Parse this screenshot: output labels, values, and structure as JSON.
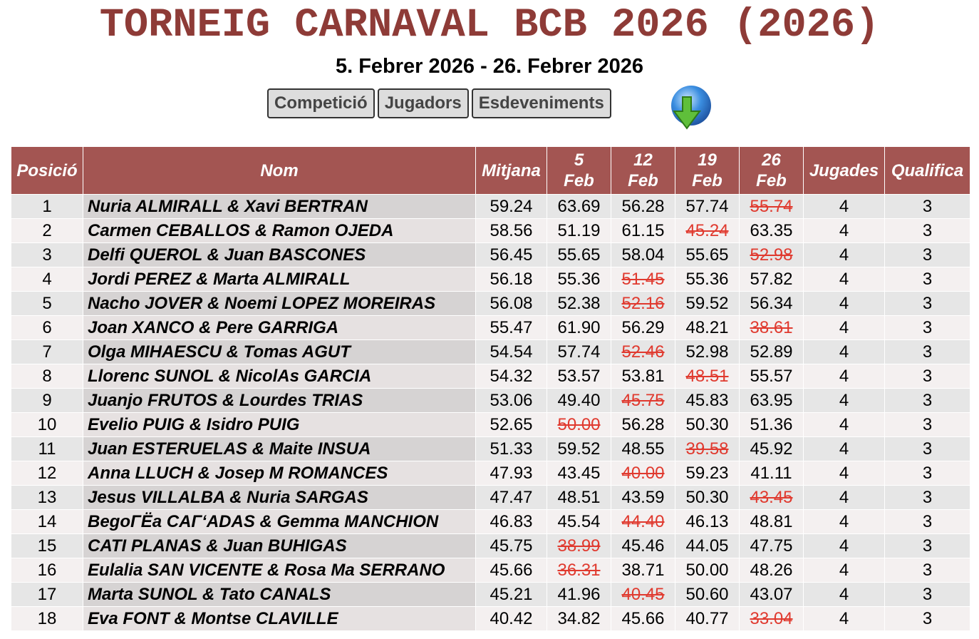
{
  "header": {
    "title": "TORNEIG CARNAVAL BCB 2026 (2026)",
    "dates": "5. Febrer 2026 - 26. Febrer 2026",
    "tabs": [
      "Competició",
      "Jugadors",
      "Esdeveniments"
    ]
  },
  "table": {
    "columns": [
      "Posició",
      "Nom",
      "Mitjana",
      "5 Feb",
      "12 Feb",
      "19 Feb",
      "26 Feb",
      "Jugades",
      "Qualifica"
    ],
    "rows": [
      {
        "pos": "1",
        "name": "Nuria ALMIRALL & Xavi BERTRAN",
        "avg": "59.24",
        "scores": [
          "63.69",
          "56.28",
          "57.74",
          "55.74"
        ],
        "struck": 3,
        "played": "4",
        "qualify": "3"
      },
      {
        "pos": "2",
        "name": "Carmen CEBALLOS & Ramon OJEDA",
        "avg": "58.56",
        "scores": [
          "51.19",
          "61.15",
          "45.24",
          "63.35"
        ],
        "struck": 2,
        "played": "4",
        "qualify": "3"
      },
      {
        "pos": "3",
        "name": "Delfi QUEROL & Juan BASCONES",
        "avg": "56.45",
        "scores": [
          "55.65",
          "58.04",
          "55.65",
          "52.98"
        ],
        "struck": 3,
        "played": "4",
        "qualify": "3"
      },
      {
        "pos": "4",
        "name": "Jordi PEREZ & Marta ALMIRALL",
        "avg": "56.18",
        "scores": [
          "55.36",
          "51.45",
          "55.36",
          "57.82"
        ],
        "struck": 1,
        "played": "4",
        "qualify": "3"
      },
      {
        "pos": "5",
        "name": "Nacho JOVER & Noemi LOPEZ MOREIRAS",
        "avg": "56.08",
        "scores": [
          "52.38",
          "52.16",
          "59.52",
          "56.34"
        ],
        "struck": 1,
        "played": "4",
        "qualify": "3"
      },
      {
        "pos": "6",
        "name": "Joan XANCO & Pere GARRIGA",
        "avg": "55.47",
        "scores": [
          "61.90",
          "56.29",
          "48.21",
          "38.61"
        ],
        "struck": 3,
        "played": "4",
        "qualify": "3"
      },
      {
        "pos": "7",
        "name": "Olga MIHAESCU & Tomas AGUT",
        "avg": "54.54",
        "scores": [
          "57.74",
          "52.46",
          "52.98",
          "52.89"
        ],
        "struck": 1,
        "played": "4",
        "qualify": "3"
      },
      {
        "pos": "8",
        "name": "Llorenc SUNOL & NicolAs GARCIA",
        "avg": "54.32",
        "scores": [
          "53.57",
          "53.81",
          "48.51",
          "55.57"
        ],
        "struck": 2,
        "played": "4",
        "qualify": "3"
      },
      {
        "pos": "9",
        "name": "Juanjo FRUTOS & Lourdes TRIAS",
        "avg": "53.06",
        "scores": [
          "49.40",
          "45.75",
          "45.83",
          "63.95"
        ],
        "struck": 1,
        "played": "4",
        "qualify": "3"
      },
      {
        "pos": "10",
        "name": "Evelio PUIG & Isidro PUIG",
        "avg": "52.65",
        "scores": [
          "50.00",
          "56.28",
          "50.30",
          "51.36"
        ],
        "struck": 0,
        "played": "4",
        "qualify": "3"
      },
      {
        "pos": "11",
        "name": "Juan ESTERUELAS & Maite INSUA",
        "avg": "51.33",
        "scores": [
          "59.52",
          "48.55",
          "39.58",
          "45.92"
        ],
        "struck": 2,
        "played": "4",
        "qualify": "3"
      },
      {
        "pos": "12",
        "name": "Anna LLUCH & Josep M ROMANCES",
        "avg": "47.93",
        "scores": [
          "43.45",
          "40.00",
          "59.23",
          "41.11"
        ],
        "struck": 1,
        "played": "4",
        "qualify": "3"
      },
      {
        "pos": "13",
        "name": "Jesus VILLALBA & Nuria SARGAS",
        "avg": "47.47",
        "scores": [
          "48.51",
          "43.59",
          "50.30",
          "43.45"
        ],
        "struck": 3,
        "played": "4",
        "qualify": "3"
      },
      {
        "pos": "14",
        "name": "BegoГЁa CAГ‘ADAS & Gemma MANCHION",
        "avg": "46.83",
        "scores": [
          "45.54",
          "44.40",
          "46.13",
          "48.81"
        ],
        "struck": 1,
        "played": "4",
        "qualify": "3"
      },
      {
        "pos": "15",
        "name": "CATI PLANAS & Juan BUHIGAS",
        "avg": "45.75",
        "scores": [
          "38.99",
          "45.46",
          "44.05",
          "47.75"
        ],
        "struck": 0,
        "played": "4",
        "qualify": "3"
      },
      {
        "pos": "16",
        "name": "Eulalia SAN VICENTE & Rosa Ma SERRANO",
        "avg": "45.66",
        "scores": [
          "36.31",
          "38.71",
          "50.00",
          "48.26"
        ],
        "struck": 0,
        "played": "4",
        "qualify": "3"
      },
      {
        "pos": "17",
        "name": "Marta SUNOL & Tato CANALS",
        "avg": "45.21",
        "scores": [
          "41.96",
          "40.45",
          "50.60",
          "43.07"
        ],
        "struck": 1,
        "played": "4",
        "qualify": "3"
      },
      {
        "pos": "18",
        "name": "Eva FONT & Montse CLAVILLE",
        "avg": "40.42",
        "scores": [
          "34.82",
          "45.66",
          "40.77",
          "33.04"
        ],
        "struck": 3,
        "played": "4",
        "qualify": "3"
      }
    ]
  }
}
